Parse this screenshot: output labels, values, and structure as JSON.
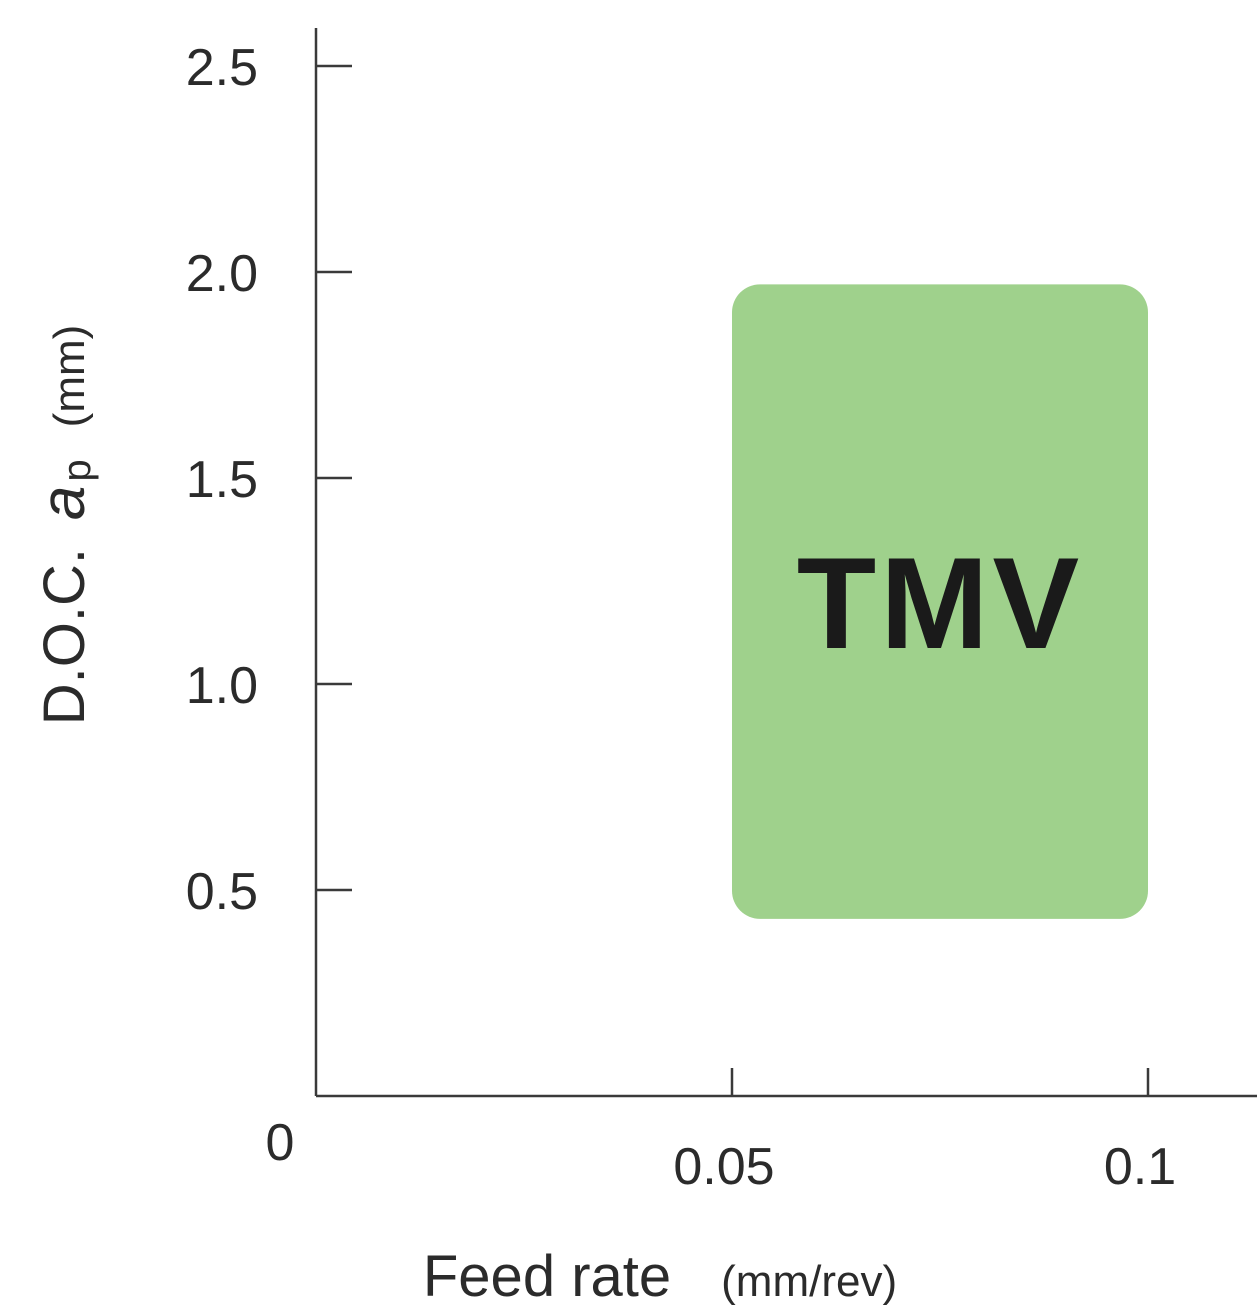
{
  "chart_data": {
    "type": "area",
    "x_ticks": [
      "0.05",
      "0.1"
    ],
    "y_ticks": [
      "0.5",
      "1.0",
      "1.5",
      "2.0",
      "2.5"
    ],
    "origin_label": "0",
    "xlim": [
      0,
      0.13
    ],
    "ylim": [
      0,
      2.6
    ],
    "xlabel": "Feed rate",
    "xlabel_unit": "(mm/rev)",
    "ylabel_prefix": "D.O.C.",
    "ylabel_symbol": "a",
    "ylabel_subscript": "p",
    "ylabel_unit": "(mm)",
    "grid": false,
    "regions": [
      {
        "name": "TMV",
        "x_min": 0.05,
        "x_max": 0.1,
        "y_min": 0.43,
        "y_max": 1.97,
        "color": "#9fd18c"
      }
    ]
  }
}
